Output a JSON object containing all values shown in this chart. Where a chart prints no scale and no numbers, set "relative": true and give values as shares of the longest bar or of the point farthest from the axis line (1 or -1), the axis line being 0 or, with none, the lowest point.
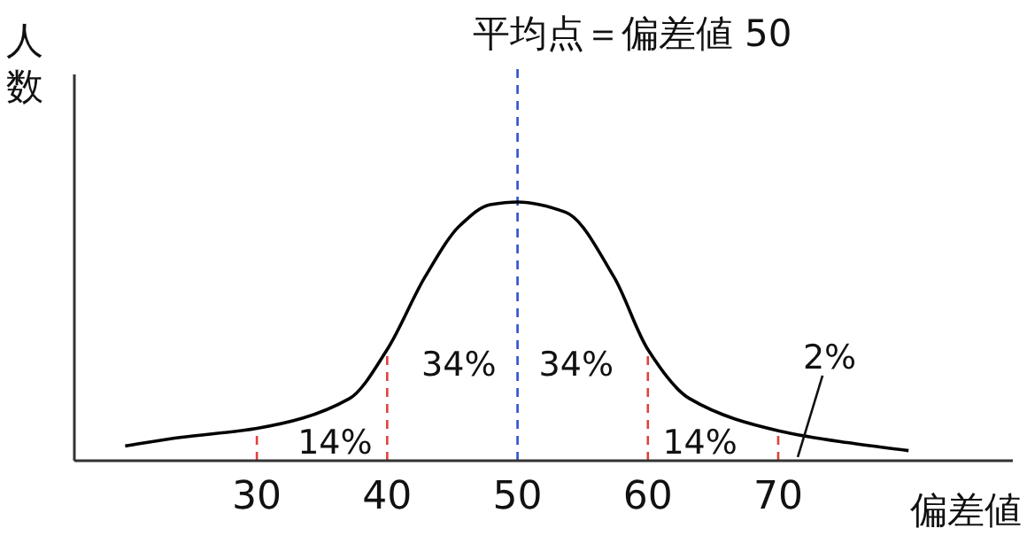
{
  "chart_data": {
    "type": "line",
    "relative": true,
    "title": "平均点＝偏差値 50",
    "xlabel": "偏差値",
    "ylabel": "人数",
    "xlim": [
      16,
      88
    ],
    "xticks": [
      30,
      40,
      50,
      60,
      70
    ],
    "series": [
      {
        "color": "#000000",
        "x": [
          19.9,
          24.1,
          30,
          37.1,
          40,
          42.9,
          45.6,
          47.9,
          50,
          53.7,
          57.4,
          60,
          63.2,
          70.1,
          75.3,
          80
        ],
        "values": [
          0.057,
          0.09,
          0.125,
          0.24,
          0.43,
          0.71,
          0.91,
          0.99,
          1,
          0.96,
          0.71,
          0.43,
          0.24,
          0.115,
          0.07,
          0.039
        ]
      }
    ],
    "ref_lines": [
      {
        "axis": "x",
        "value": 30,
        "color": "#e0413c",
        "line_style": "dashed"
      },
      {
        "axis": "x",
        "value": 40,
        "color": "#e0413c",
        "line_style": "dashed"
      },
      {
        "axis": "x",
        "value": 50,
        "color": "#3050d0",
        "line_style": "dashed"
      },
      {
        "axis": "x",
        "value": 60,
        "color": "#e0413c",
        "line_style": "dashed"
      },
      {
        "axis": "x",
        "value": 70,
        "color": "#e0413c",
        "line_style": "dashed"
      }
    ],
    "annotations": [
      "14%",
      "34%",
      "34%",
      "14%",
      {
        "text": "2%",
        "x": 71.5,
        "y": 0.11
      }
    ]
  }
}
